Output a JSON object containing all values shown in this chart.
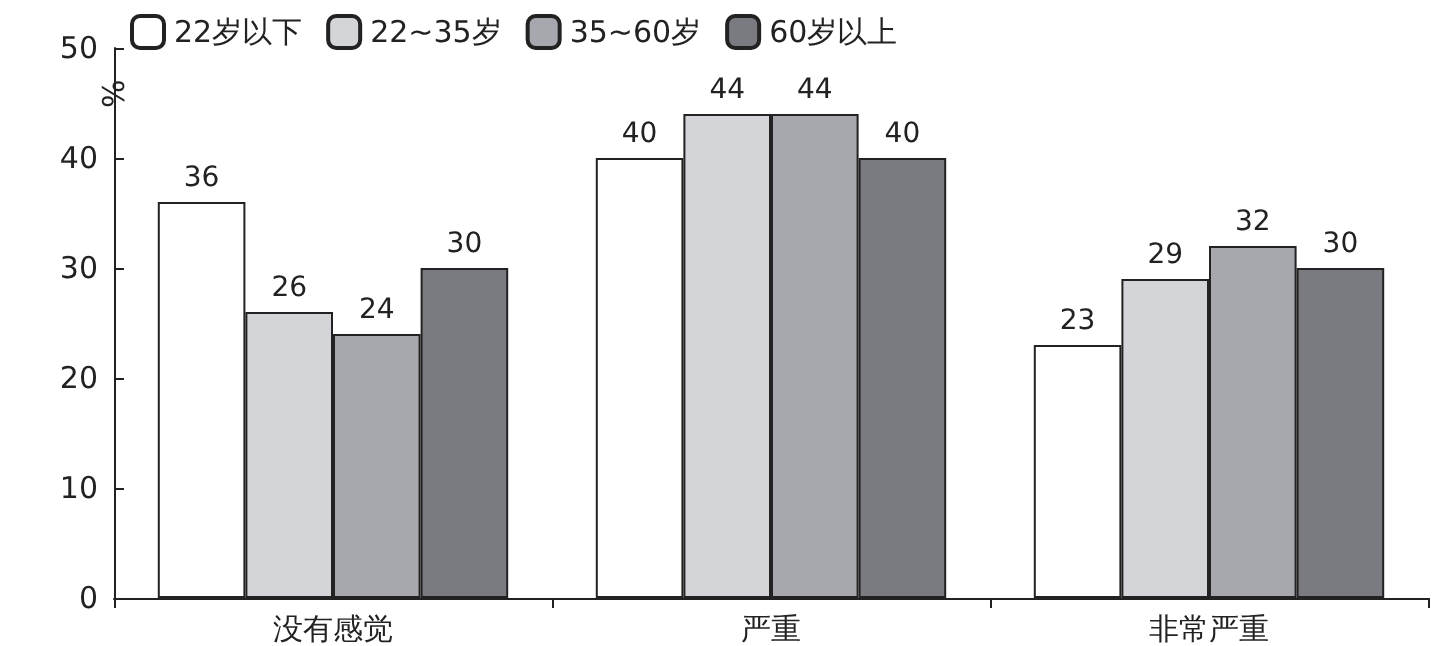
{
  "chart_data": {
    "type": "bar",
    "ylabel": "%",
    "categories": [
      "没有感觉",
      "严重",
      "非常严重"
    ],
    "series": [
      {
        "name": "22岁以下",
        "color": "#ffffff",
        "values": [
          36,
          40,
          23
        ]
      },
      {
        "name": "22~35岁",
        "color": "#d4d5d9",
        "values": [
          26,
          44,
          29
        ]
      },
      {
        "name": "35~60岁",
        "color": "#a7a8ad",
        "values": [
          24,
          44,
          32
        ]
      },
      {
        "name": "60岁以上",
        "color": "#7a7b80",
        "values": [
          30,
          40,
          30
        ]
      }
    ],
    "ylim": [
      0,
      50
    ],
    "yticks": [
      0,
      10,
      20,
      30,
      40,
      50
    ],
    "grid": false,
    "legend": "top",
    "data_labels": true
  }
}
